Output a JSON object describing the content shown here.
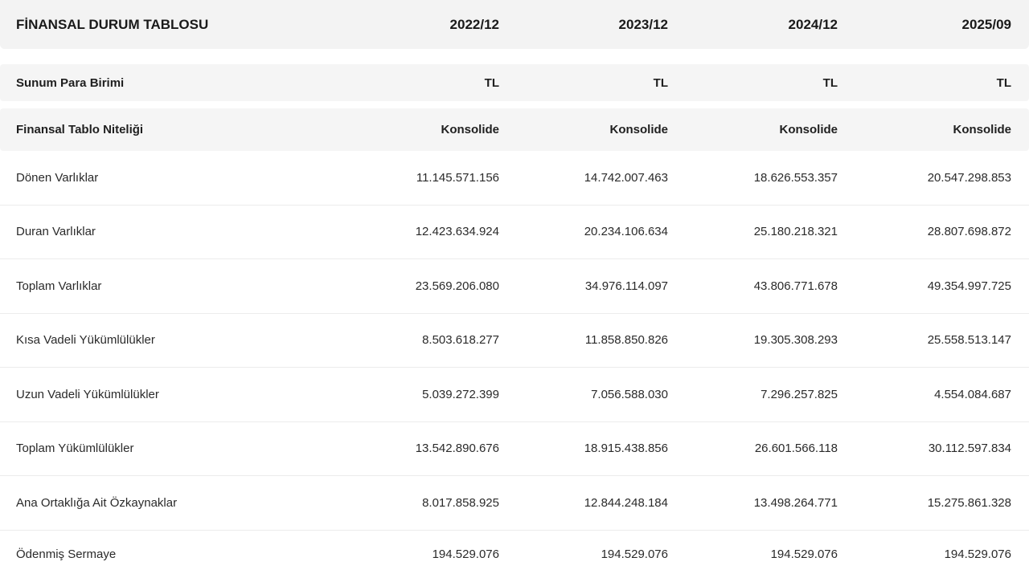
{
  "table": {
    "title": "FİNANSAL DURUM TABLOSU",
    "periods": [
      "2022/12",
      "2023/12",
      "2024/12",
      "2025/09"
    ],
    "meta_rows": [
      {
        "label": "Sunum Para Birimi",
        "values": [
          "TL",
          "TL",
          "TL",
          "TL"
        ]
      },
      {
        "label": "Finansal Tablo Niteliği",
        "values": [
          "Konsolide",
          "Konsolide",
          "Konsolide",
          "Konsolide"
        ]
      }
    ],
    "rows": [
      {
        "label": "Dönen Varlıklar",
        "values": [
          "11.145.571.156",
          "14.742.007.463",
          "18.626.553.357",
          "20.547.298.853"
        ]
      },
      {
        "label": "Duran Varlıklar",
        "values": [
          "12.423.634.924",
          "20.234.106.634",
          "25.180.218.321",
          "28.807.698.872"
        ]
      },
      {
        "label": "Toplam Varlıklar",
        "values": [
          "23.569.206.080",
          "34.976.114.097",
          "43.806.771.678",
          "49.354.997.725"
        ]
      },
      {
        "label": "Kısa Vadeli Yükümlülükler",
        "values": [
          "8.503.618.277",
          "11.858.850.826",
          "19.305.308.293",
          "25.558.513.147"
        ]
      },
      {
        "label": "Uzun Vadeli Yükümlülükler",
        "values": [
          "5.039.272.399",
          "7.056.588.030",
          "7.296.257.825",
          "4.554.084.687"
        ]
      },
      {
        "label": "Toplam Yükümlülükler",
        "values": [
          "13.542.890.676",
          "18.915.438.856",
          "26.601.566.118",
          "30.112.597.834"
        ]
      },
      {
        "label": "Ana Ortaklığa Ait Özkaynaklar",
        "values": [
          "8.017.858.925",
          "12.844.248.184",
          "13.498.264.771",
          "15.275.861.328"
        ]
      },
      {
        "label": "Ödenmiş Sermaye",
        "values": [
          "194.529.076",
          "194.529.076",
          "194.529.076",
          "194.529.076"
        ]
      }
    ]
  }
}
